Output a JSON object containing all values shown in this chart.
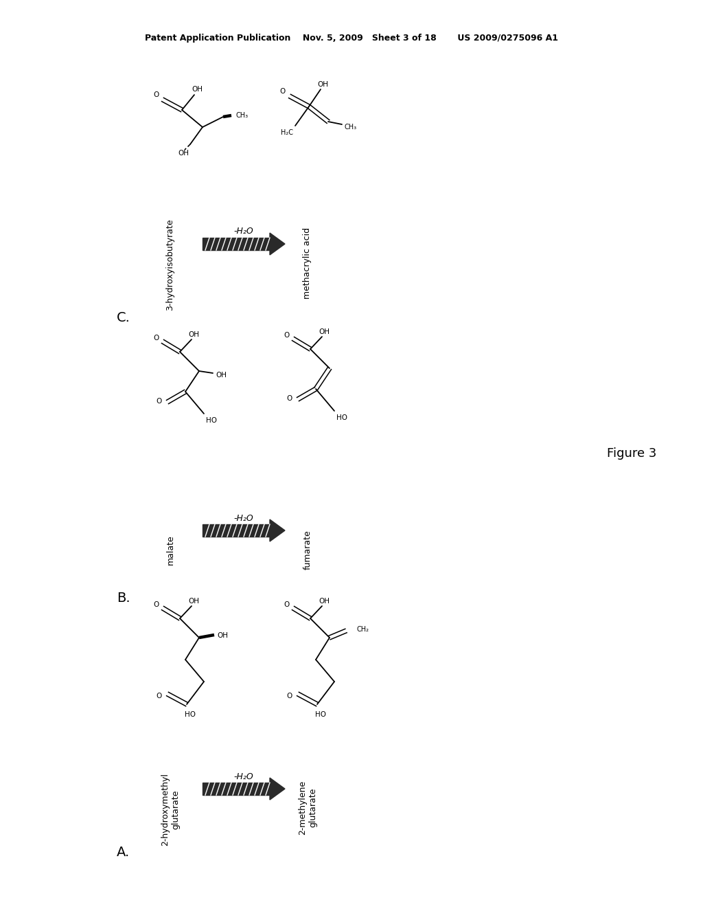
{
  "background_color": "#ffffff",
  "header": "Patent Application Publication    Nov. 5, 2009   Sheet 3 of 18       US 2009/0275096 A1",
  "figure_label": "Figure 3",
  "section_C_label": "C.",
  "section_B_label": "B.",
  "section_A_label": "A.",
  "section_C_left": "3-hydroxyisobutyrate",
  "section_C_right": "methacrylic acid",
  "section_B_left": "malate",
  "section_B_right": "fumarate",
  "section_A_left": "2-hydroxymethyl\nglutarate",
  "section_A_right": "2-methylene\nglutarate",
  "arrow_label": "-H₂O"
}
